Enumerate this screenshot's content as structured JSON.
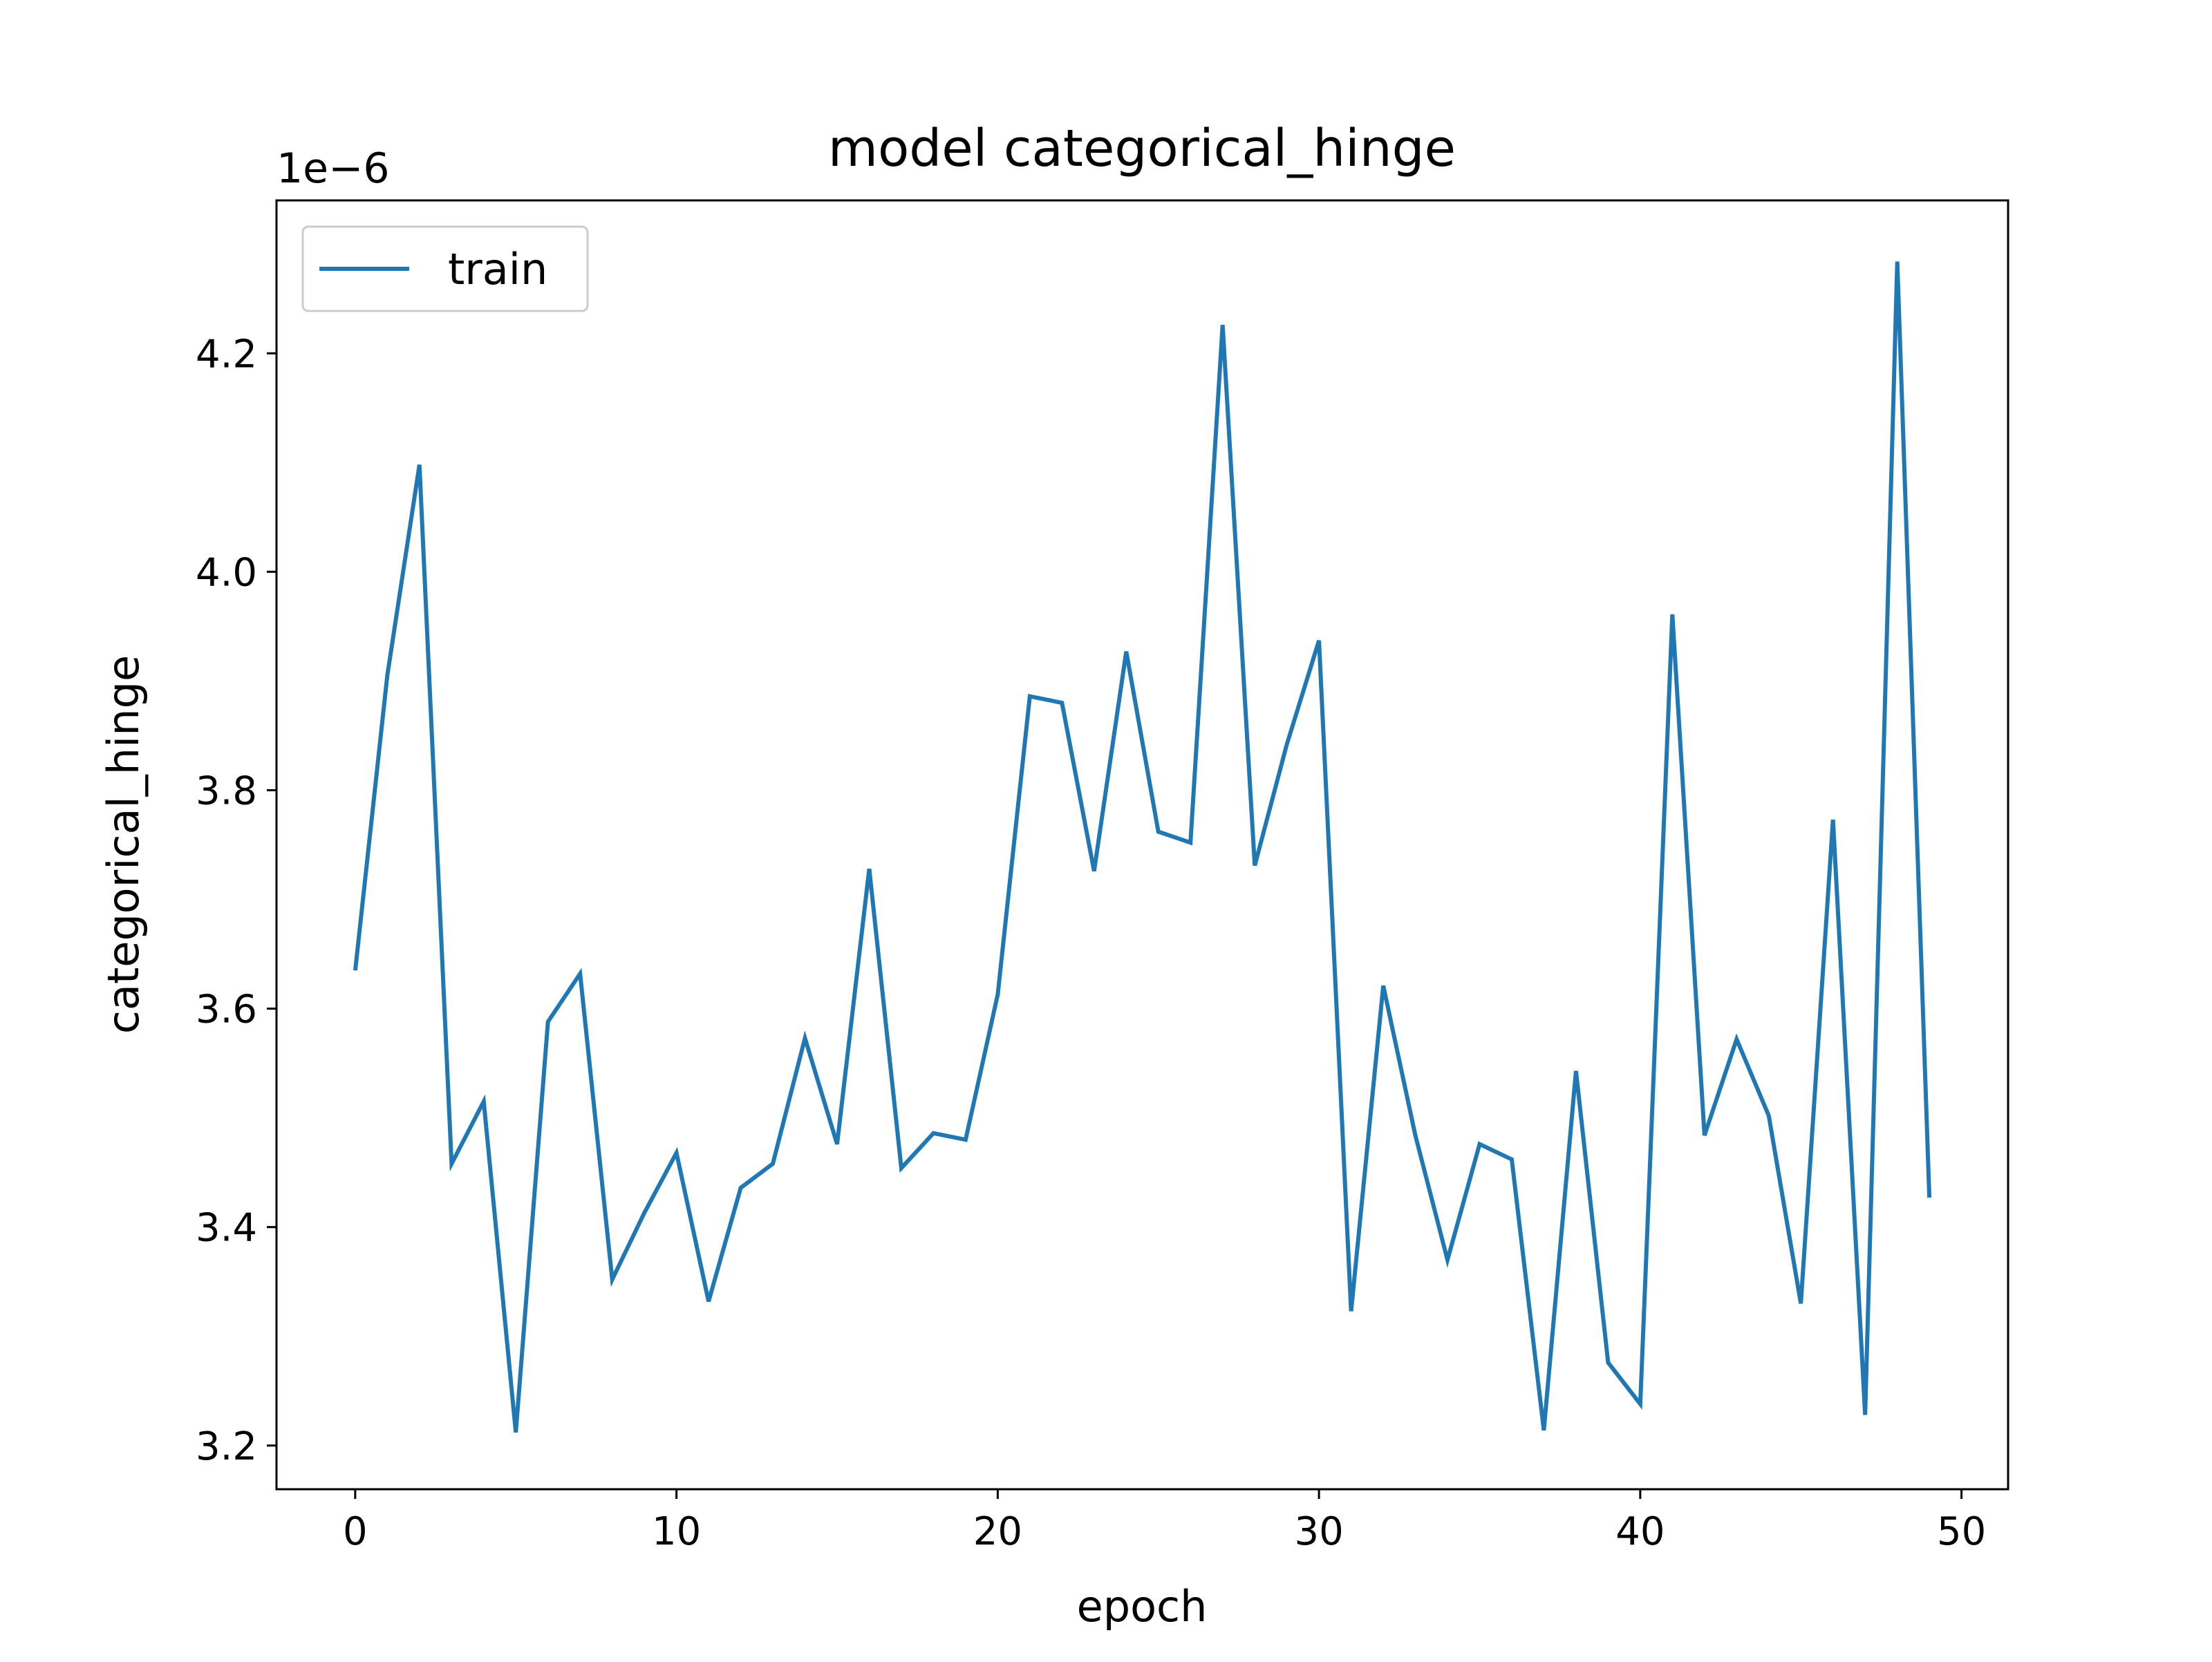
{
  "chart_data": {
    "type": "line",
    "title": "model categorical_hinge",
    "xlabel": "epoch",
    "ylabel": "categorical_hinge",
    "y_offset_label": "1e−6",
    "xlim": [
      -2.45,
      51.45
    ],
    "ylim": [
      3.16,
      4.34
    ],
    "x_ticks": [
      0,
      10,
      20,
      30,
      40,
      50
    ],
    "y_ticks": [
      3.2,
      3.4,
      3.6,
      3.8,
      4.0,
      4.2
    ],
    "y_tick_labels": [
      "3.2",
      "3.4",
      "3.6",
      "3.8",
      "4.0",
      "4.2"
    ],
    "grid": false,
    "legend": {
      "position": "upper left",
      "entries": [
        "train"
      ]
    },
    "series": [
      {
        "name": "train",
        "color": "#1f77b4",
        "x": [
          0,
          1,
          2,
          3,
          4,
          5,
          6,
          7,
          8,
          9,
          10,
          11,
          12,
          13,
          14,
          15,
          16,
          17,
          18,
          19,
          20,
          21,
          22,
          23,
          24,
          25,
          26,
          27,
          28,
          29,
          30,
          31,
          32,
          33,
          34,
          35,
          36,
          37,
          38,
          39,
          40,
          41,
          42,
          43,
          44,
          45,
          46,
          47,
          48,
          49
        ],
        "y": [
          3.635,
          3.905,
          4.098,
          3.458,
          3.515,
          3.212,
          3.588,
          3.632,
          3.352,
          3.413,
          3.468,
          3.332,
          3.436,
          3.458,
          3.573,
          3.476,
          3.728,
          3.454,
          3.486,
          3.48,
          3.613,
          3.886,
          3.88,
          3.726,
          3.927,
          3.762,
          3.752,
          4.226,
          3.731,
          3.842,
          3.937,
          3.323,
          3.621,
          3.484,
          3.37,
          3.476,
          3.462,
          3.214,
          3.543,
          3.276,
          3.238,
          3.961,
          3.484,
          3.572,
          3.502,
          3.33,
          3.773,
          3.228,
          4.284,
          3.427
        ]
      }
    ]
  }
}
